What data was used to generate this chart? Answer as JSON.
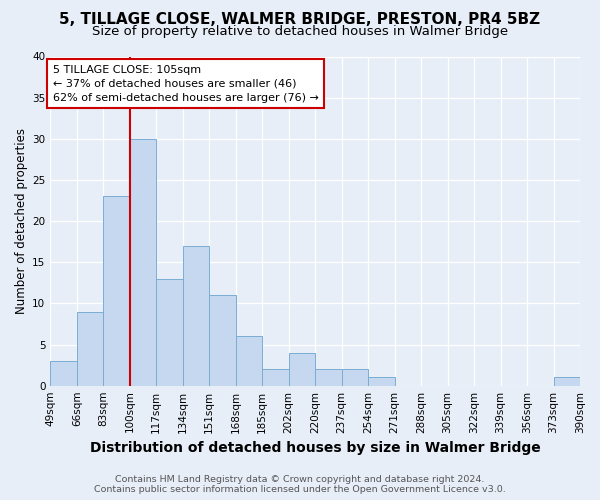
{
  "title": "5, TILLAGE CLOSE, WALMER BRIDGE, PRESTON, PR4 5BZ",
  "subtitle": "Size of property relative to detached houses in Walmer Bridge",
  "xlabel": "Distribution of detached houses by size in Walmer Bridge",
  "ylabel": "Number of detached properties",
  "footer_line1": "Contains HM Land Registry data © Crown copyright and database right 2024.",
  "footer_line2": "Contains public sector information licensed under the Open Government Licence v3.0.",
  "bin_labels": [
    "49sqm",
    "66sqm",
    "83sqm",
    "100sqm",
    "117sqm",
    "134sqm",
    "151sqm",
    "168sqm",
    "185sqm",
    "202sqm",
    "220sqm",
    "237sqm",
    "254sqm",
    "271sqm",
    "288sqm",
    "305sqm",
    "322sqm",
    "339sqm",
    "356sqm",
    "373sqm",
    "390sqm"
  ],
  "values": [
    3,
    9,
    23,
    30,
    13,
    17,
    11,
    6,
    2,
    4,
    2,
    2,
    1,
    0,
    0,
    0,
    0,
    0,
    0,
    1
  ],
  "bar_color": "#c5d8ef",
  "bar_edge_color": "#7aadd4",
  "property_line_color": "#cc0000",
  "property_line_bin_index": 3,
  "annotation_line1": "5 TILLAGE CLOSE: 105sqm",
  "annotation_line2": "← 37% of detached houses are smaller (46)",
  "annotation_line3": "62% of semi-detached houses are larger (76) →",
  "annotation_box_edge_color": "#cc0000",
  "ylim": [
    0,
    40
  ],
  "yticks": [
    0,
    5,
    10,
    15,
    20,
    25,
    30,
    35,
    40
  ],
  "bg_color": "#e8eef8",
  "grid_color": "#d0d8e8",
  "title_fontsize": 11,
  "subtitle_fontsize": 9.5,
  "ylabel_fontsize": 8.5,
  "xlabel_fontsize": 10,
  "tick_fontsize": 7.5,
  "annotation_fontsize": 8,
  "footer_fontsize": 6.8
}
